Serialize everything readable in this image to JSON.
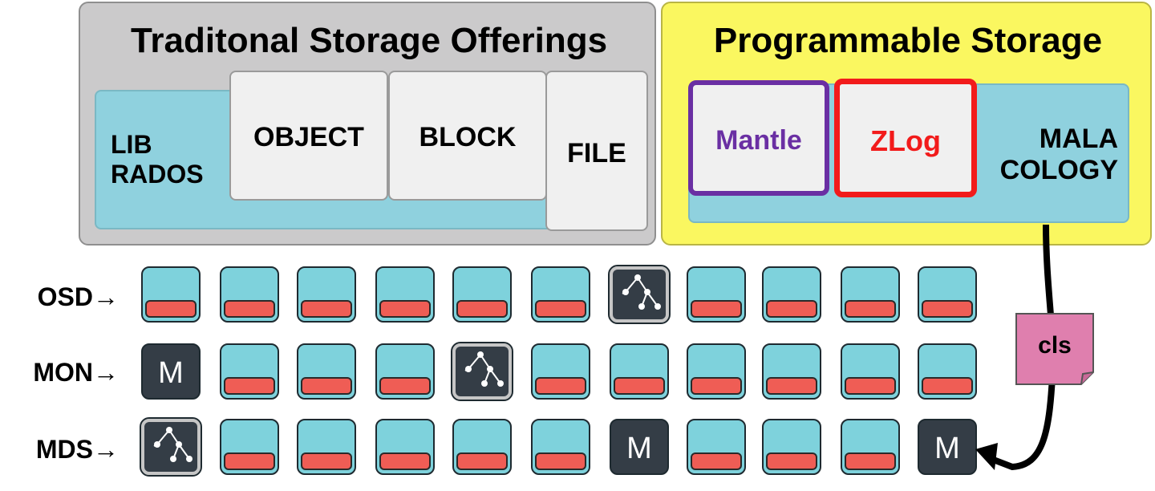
{
  "traditional": {
    "title": "Traditonal Storage Offerings",
    "librados": "LIB\nRADOS",
    "object": "OBJECT",
    "block": "BLOCK",
    "file": "FILE"
  },
  "programmable": {
    "title": "Programmable Storage",
    "mantle": "Mantle",
    "zlog": "ZLog",
    "malacology": "MALA\nCOLOGY"
  },
  "rows": [
    {
      "label": "OSD→",
      "nodes": [
        "disk",
        "disk",
        "disk",
        "disk",
        "disk",
        "disk",
        "graph",
        "disk",
        "disk",
        "disk",
        "disk"
      ]
    },
    {
      "label": "MON→",
      "nodes": [
        "mon",
        "disk",
        "disk",
        "disk",
        "graph",
        "disk",
        "disk",
        "disk",
        "disk",
        "disk",
        "disk"
      ]
    },
    {
      "label": "MDS→",
      "nodes": [
        "graph",
        "disk",
        "disk",
        "disk",
        "disk",
        "disk",
        "mon",
        "disk",
        "disk",
        "disk",
        "mon"
      ]
    }
  ],
  "mon_letter": "M",
  "cls": "cls",
  "colors": {
    "traditional_bg": "#cbcacb",
    "programmable_bg": "#faf760",
    "layer_bar": "#8fd1de",
    "mantle": "#6a2fa3",
    "zlog": "#f21b1b",
    "disk": "#7ed2dc",
    "disk_stripe": "#ef5d55",
    "dark_node": "#343d46",
    "cls_note": "#df7fae"
  }
}
